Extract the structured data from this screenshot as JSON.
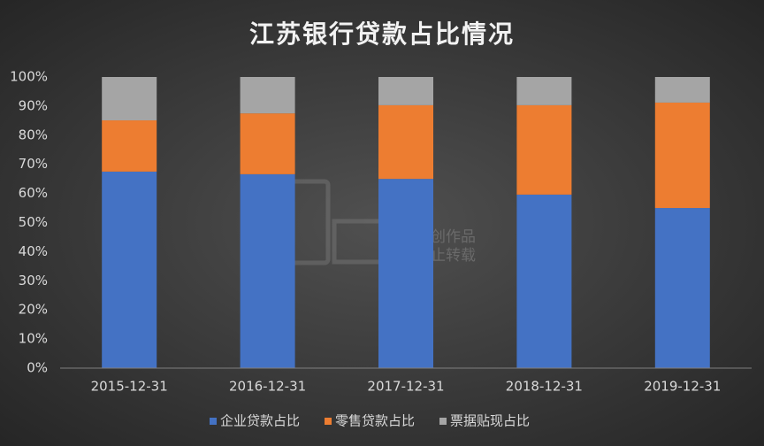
{
  "chart_data": {
    "type": "stacked_bar",
    "title": "江苏银行贷款占比情况",
    "categories": [
      "2015-12-31",
      "2016-12-31",
      "2017-12-31",
      "2018-12-31",
      "2019-12-31"
    ],
    "series": [
      {
        "name": "企业贷款占比",
        "color": "#4472c4",
        "values": [
          67.5,
          66.6,
          65.0,
          59.6,
          55.0
        ]
      },
      {
        "name": "零售贷款占比",
        "color": "#ed7d31",
        "values": [
          17.6,
          20.9,
          25.3,
          30.7,
          36.2
        ]
      },
      {
        "name": "票据贴现占比",
        "color": "#a5a5a5",
        "values": [
          14.9,
          12.5,
          9.7,
          9.7,
          8.8
        ]
      }
    ],
    "ylim": [
      0,
      100
    ],
    "yticks": [
      {
        "value": 0,
        "label": "0%"
      },
      {
        "value": 10,
        "label": "10%"
      },
      {
        "value": 20,
        "label": "20%"
      },
      {
        "value": 30,
        "label": "30%"
      },
      {
        "value": 40,
        "label": "40%"
      },
      {
        "value": 50,
        "label": "50%"
      },
      {
        "value": 60,
        "label": "60%"
      },
      {
        "value": 70,
        "label": "70%"
      },
      {
        "value": 80,
        "label": "80%"
      },
      {
        "value": 90,
        "label": "90%"
      },
      {
        "value": 100,
        "label": "100%"
      }
    ],
    "grid": false,
    "legend": "bottom",
    "watermark": [
      "原创作品",
      "禁止转载"
    ]
  }
}
